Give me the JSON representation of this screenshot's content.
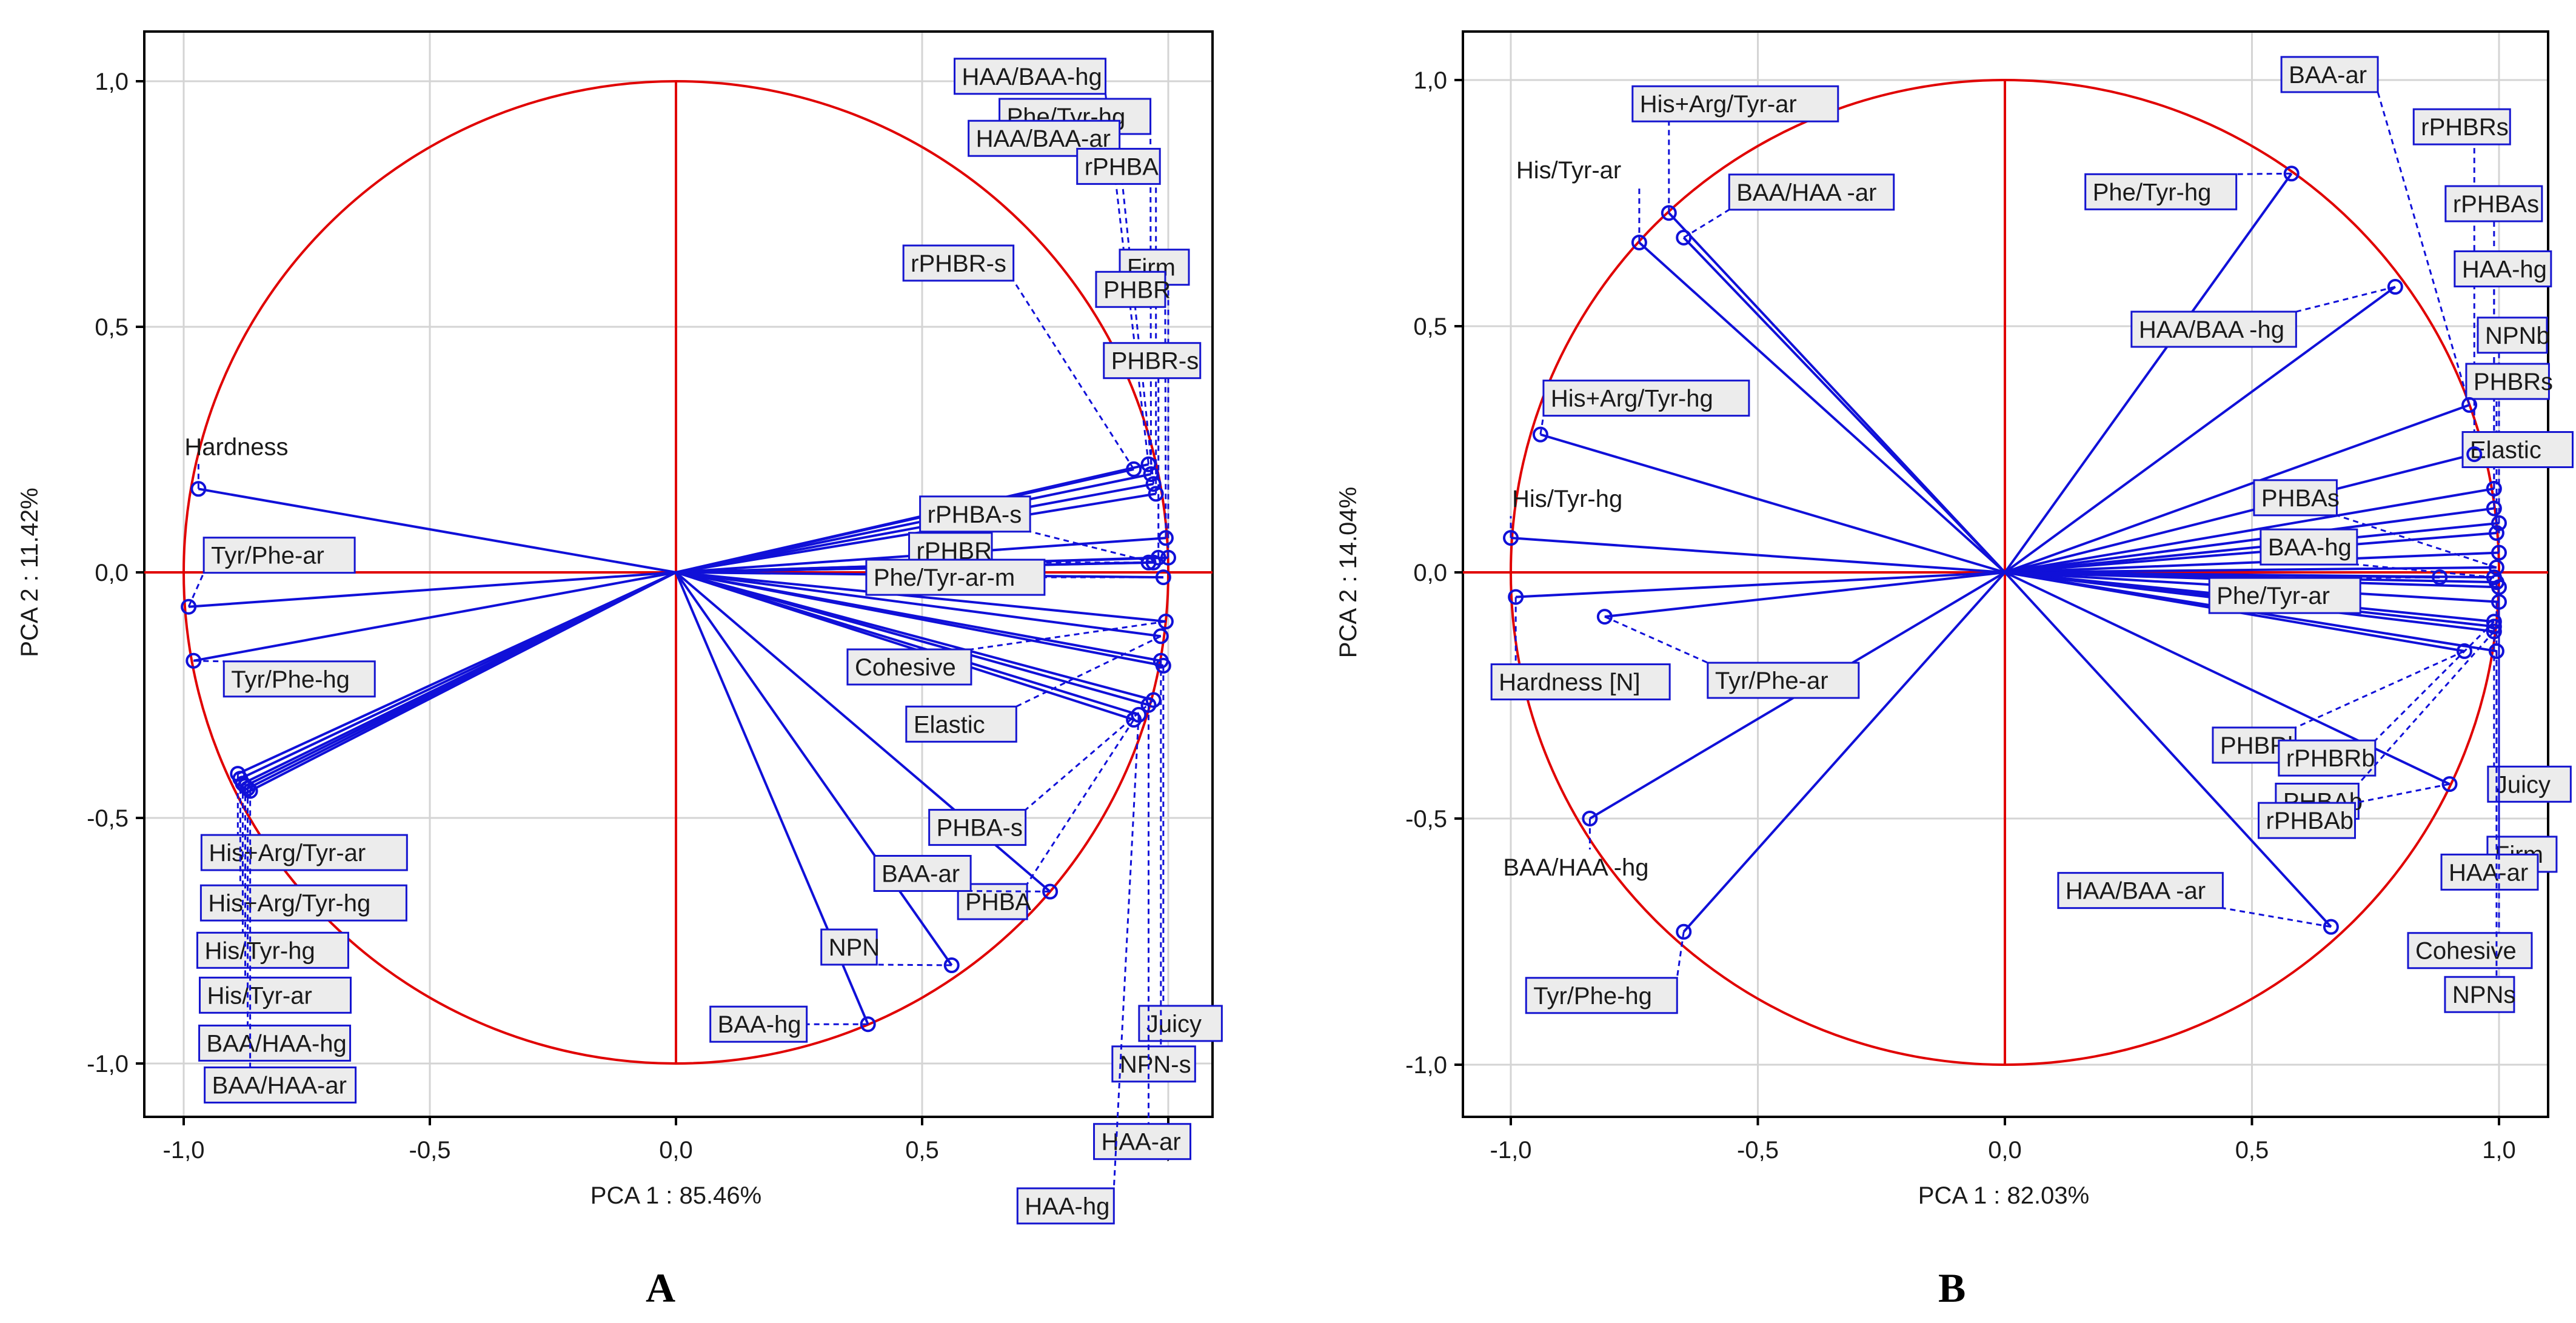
{
  "charts": [
    {
      "letter": "A",
      "chart_data": {
        "type": "scatter",
        "subtype": "pca-correlation-circle",
        "xlabel": "PCA 1 : 85.46%",
        "ylabel": "PCA 2 : 11.42%",
        "xlim": [
          -1.1,
          1.1
        ],
        "ylim": [
          -1.1,
          1.1
        ],
        "xticks": [
          "-1,0",
          "-0,5",
          "0,0",
          "0,5",
          "1,0"
        ],
        "yticks": [
          "-1,0",
          "-0,5",
          "0,0",
          "0,5",
          "1,0"
        ],
        "grid": true,
        "unit_circle": true,
        "points": [
          {
            "label": "Hardness",
            "x": -0.97,
            "y": 0.17
          },
          {
            "label": "Tyr/Phe-ar",
            "x": -0.99,
            "y": -0.07
          },
          {
            "label": "Tyr/Phe-hg",
            "x": -0.98,
            "y": -0.18
          },
          {
            "label": "His+Arg/Tyr-ar",
            "x": -0.89,
            "y": -0.41
          },
          {
            "label": "His+Arg/Tyr-hg",
            "x": -0.885,
            "y": -0.42
          },
          {
            "label": "His/Tyr-hg",
            "x": -0.88,
            "y": -0.43
          },
          {
            "label": "His/Tyr-ar",
            "x": -0.875,
            "y": -0.435
          },
          {
            "label": "BAA/HAA-hg",
            "x": -0.87,
            "y": -0.44
          },
          {
            "label": "BAA/HAA-ar",
            "x": -0.865,
            "y": -0.445
          },
          {
            "label": "HAA/BAA-hg",
            "x": 0.96,
            "y": 0.22
          },
          {
            "label": "Phe/Tyr-hg",
            "x": 0.965,
            "y": 0.2
          },
          {
            "label": "HAA/BAA-ar",
            "x": 0.97,
            "y": 0.18
          },
          {
            "label": "rPHBA",
            "x": 0.975,
            "y": 0.16
          },
          {
            "label": "Firm",
            "x": 1.0,
            "y": 0.03
          },
          {
            "label": "PHBR",
            "x": 0.995,
            "y": 0.07
          },
          {
            "label": "PHBR-s",
            "x": 0.98,
            "y": 0.03
          },
          {
            "label": "rPHBR-s",
            "x": 0.93,
            "y": 0.21
          },
          {
            "label": "rPHBR",
            "x": 0.96,
            "y": 0.02
          },
          {
            "label": "rPHBA-s",
            "x": 0.97,
            "y": 0.02
          },
          {
            "label": "Phe/Tyr-ar-m",
            "x": 0.99,
            "y": -0.01
          },
          {
            "label": "Cohesive",
            "x": 0.995,
            "y": -0.1
          },
          {
            "label": "Elastic",
            "x": 0.985,
            "y": -0.13
          },
          {
            "label": "PHBA-s",
            "x": 0.97,
            "y": -0.26
          },
          {
            "label": "PHBA",
            "x": 0.93,
            "y": -0.3
          },
          {
            "label": "BAA-ar",
            "x": 0.76,
            "y": -0.65
          },
          {
            "label": "NPN",
            "x": 0.56,
            "y": -0.8
          },
          {
            "label": "BAA-hg",
            "x": 0.39,
            "y": -0.92
          },
          {
            "label": "Juicy",
            "x": 0.99,
            "y": -0.19
          },
          {
            "label": "NPN-s",
            "x": 0.985,
            "y": -0.18
          },
          {
            "label": "HAA-ar",
            "x": 0.96,
            "y": -0.27
          },
          {
            "label": "HAA-hg",
            "x": 0.94,
            "y": -0.29
          }
        ]
      }
    },
    {
      "letter": "B",
      "chart_data": {
        "type": "scatter",
        "subtype": "pca-correlation-circle",
        "xlabel": "PCA 1 : 82.03%",
        "ylabel": "PCA 2 : 14.04%",
        "xlim": [
          -1.1,
          1.1
        ],
        "ylim": [
          -1.1,
          1.1
        ],
        "xticks": [
          "-1,0",
          "-0,5",
          "0,0",
          "0,5",
          "1,0"
        ],
        "yticks": [
          "-1,0",
          "-0,5",
          "0,0",
          "0,5",
          "1,0"
        ],
        "grid": true,
        "unit_circle": true,
        "points": [
          {
            "label": "His+Arg/Tyr-ar",
            "x": -0.68,
            "y": 0.73
          },
          {
            "label": "His/Tyr-ar",
            "x": -0.74,
            "y": 0.67
          },
          {
            "label": "BAA/HAA -ar",
            "x": -0.65,
            "y": 0.68
          },
          {
            "label": "His+Arg/Tyr-hg",
            "x": -0.94,
            "y": 0.28
          },
          {
            "label": "His/Tyr-hg",
            "x": -1.0,
            "y": 0.07
          },
          {
            "label": "Hardness [N]",
            "x": -0.99,
            "y": -0.05
          },
          {
            "label": "Tyr/Phe-ar",
            "x": -0.81,
            "y": -0.09
          },
          {
            "label": "BAA/HAA -hg",
            "x": -0.84,
            "y": -0.5
          },
          {
            "label": "Tyr/Phe-hg",
            "x": -0.65,
            "y": -0.73
          },
          {
            "label": "Phe/Tyr-hg",
            "x": 0.58,
            "y": 0.81
          },
          {
            "label": "HAA/BAA -hg",
            "x": 0.79,
            "y": 0.58
          },
          {
            "label": "BAA-ar",
            "x": 0.94,
            "y": 0.34
          },
          {
            "label": "rPHBRs",
            "x": 0.95,
            "y": 0.24
          },
          {
            "label": "rPHBAs",
            "x": 0.99,
            "y": 0.17
          },
          {
            "label": "HAA-hg",
            "x": 0.99,
            "y": 0.13
          },
          {
            "label": "NPNb",
            "x": 1.0,
            "y": 0.1
          },
          {
            "label": "PHBRs",
            "x": 0.995,
            "y": 0.08
          },
          {
            "label": "Elastic",
            "x": 1.0,
            "y": 0.04
          },
          {
            "label": "PHBAs",
            "x": 0.995,
            "y": 0.01
          },
          {
            "label": "BAA-hg",
            "x": 0.99,
            "y": -0.01
          },
          {
            "label": "Phe/Tyr-ar",
            "x": 0.88,
            "y": -0.01
          },
          {
            "label": "PHBRb",
            "x": 0.93,
            "y": -0.16
          },
          {
            "label": "rPHBRb",
            "x": 0.99,
            "y": -0.1
          },
          {
            "label": "PHBAb",
            "x": 0.99,
            "y": -0.12
          },
          {
            "label": "rPHBAb",
            "x": 0.9,
            "y": -0.43
          },
          {
            "label": "HAA/BAA -ar",
            "x": 0.66,
            "y": -0.72
          },
          {
            "label": "Juicy",
            "x": 0.99,
            "y": -0.11
          },
          {
            "label": "Firm",
            "x": 0.995,
            "y": -0.16
          },
          {
            "label": "HAA-ar",
            "x": 1.0,
            "y": -0.03
          },
          {
            "label": "Cohesive",
            "x": 1.0,
            "y": -0.06
          },
          {
            "label": "NPNs",
            "x": 0.995,
            "y": -0.02
          }
        ]
      }
    }
  ],
  "colors": {
    "vector": "#1010d8",
    "axis": "#e00000",
    "circle": "#e00000",
    "grid": "#d4d4d4",
    "label_box_fill": "#ececec",
    "label_box_border": "#1515d0",
    "text": "#1a1a1a"
  }
}
